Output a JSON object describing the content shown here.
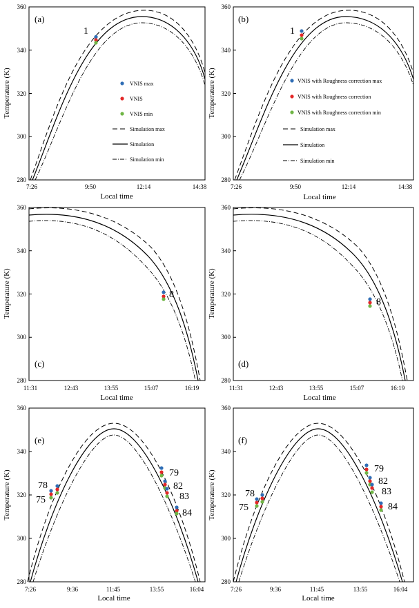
{
  "figure": {
    "panels": [
      {
        "id": "a",
        "label": "(a)",
        "ylabel": "Temperature (K)",
        "xlabel": "Local time",
        "yticks": [
          "360",
          "340",
          "320",
          "300",
          "280"
        ],
        "xticks": [
          "7:26",
          "9:50",
          "12:14",
          "14:38"
        ]
      },
      {
        "id": "b",
        "label": "(b)",
        "ylabel": "Temperature (K)",
        "xlabel": "Local time",
        "yticks": [
          "360",
          "340",
          "320",
          "300",
          "280"
        ],
        "xticks": [
          "7:26",
          "9:50",
          "12:14",
          "14:38"
        ]
      },
      {
        "id": "c",
        "label": "(c)",
        "ylabel": "Temperature (K)",
        "xlabel": "Local time",
        "yticks": [
          "360",
          "340",
          "320",
          "300",
          "280"
        ],
        "xticks": [
          "11:31",
          "12:43",
          "13:55",
          "15:07",
          "16:19"
        ]
      },
      {
        "id": "d",
        "label": "(d)",
        "ylabel": "Temperature (K)",
        "xlabel": "Local time",
        "yticks": [
          "360",
          "340",
          "320",
          "300",
          "280"
        ],
        "xticks": [
          "11:31",
          "12:43",
          "13:55",
          "15:07",
          "16:19"
        ]
      },
      {
        "id": "e",
        "label": "(e)",
        "ylabel": "Temperature (K)",
        "xlabel": "Local time",
        "yticks": [
          "360",
          "340",
          "320",
          "300",
          "280"
        ],
        "xticks": [
          "7:26",
          "9:36",
          "11:45",
          "13:55",
          "16:04"
        ]
      },
      {
        "id": "f",
        "label": "(f)",
        "ylabel": "Temperature (K)",
        "xlabel": "Local time",
        "yticks": [
          "360",
          "340",
          "320",
          "300",
          "280"
        ],
        "xticks": [
          "7:26",
          "9:36",
          "11:45",
          "13:55",
          "16:04"
        ]
      }
    ],
    "legend_a": [
      "VNIS max",
      "VNIS",
      "VNIS min",
      "Simulation max",
      "Simulation",
      "Simulation min"
    ],
    "legend_b": [
      "VNIS with Roughness correction max",
      "VNIS with  Roughness  correction",
      "VNIS with Roughness correction min",
      "Simulation max",
      "Simulation",
      "Simulation min"
    ],
    "colors": {
      "max": "#2f6db5",
      "mid": "#e32727",
      "min": "#6fb545",
      "line": "#000000"
    }
  },
  "chart_data": [
    {
      "panel": "a",
      "type": "line+scatter",
      "xlim": [
        "7:26",
        "14:38"
      ],
      "ylim": [
        280,
        360
      ],
      "series": [
        {
          "name": "Simulation max",
          "style": "dashed",
          "x": [
            "7:26",
            "8:30",
            "9:50",
            "11:00",
            "12:14",
            "13:30",
            "14:38"
          ],
          "y": [
            280,
            312,
            343,
            357,
            357,
            343,
            326
          ]
        },
        {
          "name": "Simulation",
          "style": "solid",
          "x": [
            "7:26",
            "8:30",
            "9:50",
            "11:00",
            "12:14",
            "13:30",
            "14:38"
          ],
          "y": [
            278,
            309,
            340,
            354,
            354,
            340,
            323
          ]
        },
        {
          "name": "Simulation min",
          "style": "dashdot",
          "x": [
            "7:26",
            "8:30",
            "9:50",
            "11:00",
            "12:14",
            "13:30",
            "14:38"
          ],
          "y": [
            276,
            306,
            337,
            351,
            352,
            338,
            320
          ]
        },
        {
          "name": "VNIS max",
          "type": "scatter",
          "x": [
            "10:30"
          ],
          "y": [
            345.5
          ]
        },
        {
          "name": "VNIS",
          "type": "scatter",
          "x": [
            "10:30"
          ],
          "y": [
            344.2
          ]
        },
        {
          "name": "VNIS min",
          "type": "scatter",
          "x": [
            "10:30"
          ],
          "y": [
            342.8
          ]
        }
      ],
      "annotations": [
        "1"
      ]
    },
    {
      "panel": "b",
      "type": "line+scatter",
      "xlim": [
        "7:26",
        "14:38"
      ],
      "ylim": [
        280,
        360
      ],
      "series": [
        {
          "name": "Simulation max",
          "style": "dashed",
          "x": [
            "7:26",
            "8:30",
            "9:50",
            "11:00",
            "12:14",
            "13:30",
            "14:38"
          ],
          "y": [
            280,
            312,
            343,
            357,
            357,
            343,
            326
          ]
        },
        {
          "name": "Simulation",
          "style": "solid",
          "x": [
            "7:26",
            "8:30",
            "9:50",
            "11:00",
            "12:14",
            "13:30",
            "14:38"
          ],
          "y": [
            278,
            309,
            340,
            354,
            354,
            340,
            323
          ]
        },
        {
          "name": "Simulation min",
          "style": "dashdot",
          "x": [
            "7:26",
            "8:30",
            "9:50",
            "11:00",
            "12:14",
            "13:30",
            "14:38"
          ],
          "y": [
            276,
            306,
            337,
            351,
            352,
            338,
            320
          ]
        },
        {
          "name": "VNIS with Roughness correction max",
          "type": "scatter",
          "x": [
            "10:29"
          ],
          "y": [
            348.5
          ]
        },
        {
          "name": "VNIS with  Roughness  correction",
          "type": "scatter",
          "x": [
            "10:29"
          ],
          "y": [
            346.5
          ]
        },
        {
          "name": "VNIS with Roughness correction min",
          "type": "scatter",
          "x": [
            "10:29"
          ],
          "y": [
            345
          ]
        }
      ],
      "annotations": [
        "1"
      ]
    },
    {
      "panel": "c",
      "type": "line+scatter",
      "xlim": [
        "11:31",
        "16:19"
      ],
      "ylim": [
        280,
        360
      ],
      "series": [
        {
          "name": "Simulation max",
          "style": "dashed",
          "x": [
            "11:31",
            "12:43",
            "13:55",
            "15:07",
            "16:19"
          ],
          "y": [
            358.5,
            355,
            344,
            326,
            290
          ]
        },
        {
          "name": "Simulation",
          "style": "solid",
          "x": [
            "11:31",
            "12:43",
            "13:55",
            "15:07",
            "16:19"
          ],
          "y": [
            355.5,
            352,
            341,
            324,
            288
          ]
        },
        {
          "name": "Simulation min",
          "style": "dashdot",
          "x": [
            "11:31",
            "12:43",
            "13:55",
            "15:07",
            "16:19"
          ],
          "y": [
            353,
            349,
            339,
            322,
            286
          ]
        },
        {
          "name": "VNIS max",
          "type": "scatter",
          "x": [
            "15:30"
          ],
          "y": [
            320.5
          ]
        },
        {
          "name": "VNIS",
          "type": "scatter",
          "x": [
            "15:30"
          ],
          "y": [
            318.5
          ]
        },
        {
          "name": "VNIS min",
          "type": "scatter",
          "x": [
            "15:30"
          ],
          "y": [
            317
          ]
        }
      ],
      "annotations": [
        "8"
      ]
    },
    {
      "panel": "d",
      "type": "line+scatter",
      "xlim": [
        "11:31",
        "16:19"
      ],
      "ylim": [
        280,
        360
      ],
      "series": [
        {
          "name": "Simulation max",
          "style": "dashed",
          "x": [
            "11:31",
            "12:43",
            "13:55",
            "15:07",
            "16:19"
          ],
          "y": [
            358.5,
            355,
            344,
            326,
            290
          ]
        },
        {
          "name": "Simulation",
          "style": "solid",
          "x": [
            "11:31",
            "12:43",
            "13:55",
            "15:07",
            "16:19"
          ],
          "y": [
            355.5,
            352,
            341,
            324,
            288
          ]
        },
        {
          "name": "Simulation min",
          "style": "dashdot",
          "x": [
            "11:31",
            "12:43",
            "13:55",
            "15:07",
            "16:19"
          ],
          "y": [
            353,
            349,
            339,
            322,
            286
          ]
        },
        {
          "name": "VNIS with Roughness correction max",
          "type": "scatter",
          "x": [
            "15:30"
          ],
          "y": [
            317.5
          ]
        },
        {
          "name": "VNIS with  Roughness  correction",
          "type": "scatter",
          "x": [
            "15:30"
          ],
          "y": [
            315.8
          ]
        },
        {
          "name": "VNIS with Roughness correction min",
          "type": "scatter",
          "x": [
            "15:30"
          ],
          "y": [
            314.2
          ]
        }
      ],
      "annotations": [
        "8"
      ]
    },
    {
      "panel": "e",
      "type": "line+scatter",
      "xlim": [
        "7:26",
        "16:04"
      ],
      "ylim": [
        280,
        360
      ],
      "series": [
        {
          "name": "Simulation max",
          "style": "dashed",
          "x": [
            "7:26",
            "9:36",
            "11:45",
            "13:55",
            "16:04"
          ],
          "y": [
            280,
            327,
            352.5,
            327,
            280
          ]
        },
        {
          "name": "Simulation",
          "style": "solid",
          "x": [
            "7:26",
            "9:36",
            "11:45",
            "13:55",
            "16:04"
          ],
          "y": [
            278,
            324.5,
            350,
            324.5,
            278
          ]
        },
        {
          "name": "Simulation min",
          "style": "dashdot",
          "x": [
            "7:26",
            "9:36",
            "11:45",
            "13:55",
            "16:04"
          ],
          "y": [
            276,
            322,
            347,
            322,
            276
          ]
        },
        {
          "name": "VNIS max",
          "type": "scatter",
          "x": [
            "8:37",
            "8:55",
            "14:15",
            "14:22",
            "14:26",
            "14:50"
          ],
          "y": [
            322.5,
            325,
            333,
            327,
            323.5,
            314
          ]
        },
        {
          "name": "VNIS",
          "type": "scatter",
          "x": [
            "8:37",
            "8:55",
            "14:15",
            "14:22",
            "14:26",
            "14:50"
          ],
          "y": [
            320,
            323,
            331,
            325,
            321,
            313
          ]
        },
        {
          "name": "VNIS min",
          "type": "scatter",
          "x": [
            "8:37",
            "8:55",
            "14:15",
            "14:22",
            "14:26",
            "14:50"
          ],
          "y": [
            318,
            321,
            329,
            323,
            319,
            311
          ]
        }
      ],
      "annotations": [
        "78",
        "75",
        "79",
        "82",
        "83",
        "84"
      ]
    },
    {
      "panel": "f",
      "type": "line+scatter",
      "xlim": [
        "7:26",
        "16:04"
      ],
      "ylim": [
        280,
        360
      ],
      "series": [
        {
          "name": "Simulation max",
          "style": "dashed",
          "x": [
            "7:26",
            "9:36",
            "11:45",
            "13:55",
            "16:04"
          ],
          "y": [
            280,
            327,
            352.5,
            327,
            280
          ]
        },
        {
          "name": "Simulation",
          "style": "solid",
          "x": [
            "7:26",
            "9:36",
            "11:45",
            "13:55",
            "16:04"
          ],
          "y": [
            278,
            324.5,
            350,
            324.5,
            278
          ]
        },
        {
          "name": "Simulation min",
          "style": "dashdot",
          "x": [
            "7:26",
            "9:36",
            "11:45",
            "13:55",
            "16:04"
          ],
          "y": [
            276,
            322,
            347,
            322,
            276
          ]
        },
        {
          "name": "VNIS with Roughness correction max",
          "type": "scatter",
          "x": [
            "8:37",
            "8:55",
            "14:15",
            "14:22",
            "14:26",
            "14:50"
          ],
          "y": [
            318,
            320,
            333.5,
            328,
            325,
            316
          ]
        },
        {
          "name": "VNIS with  Roughness  correction",
          "type": "scatter",
          "x": [
            "8:37",
            "8:55",
            "14:15",
            "14:22",
            "14:26",
            "14:50"
          ],
          "y": [
            316,
            318.5,
            331.5,
            326,
            323,
            314.5
          ]
        },
        {
          "name": "VNIS with Roughness correction min",
          "type": "scatter",
          "x": [
            "8:37",
            "8:55",
            "14:15",
            "14:22",
            "14:26",
            "14:50"
          ],
          "y": [
            314,
            316.5,
            329.5,
            324,
            321,
            313
          ]
        }
      ],
      "annotations": [
        "78",
        "75",
        "79",
        "82",
        "83",
        "84"
      ]
    }
  ]
}
